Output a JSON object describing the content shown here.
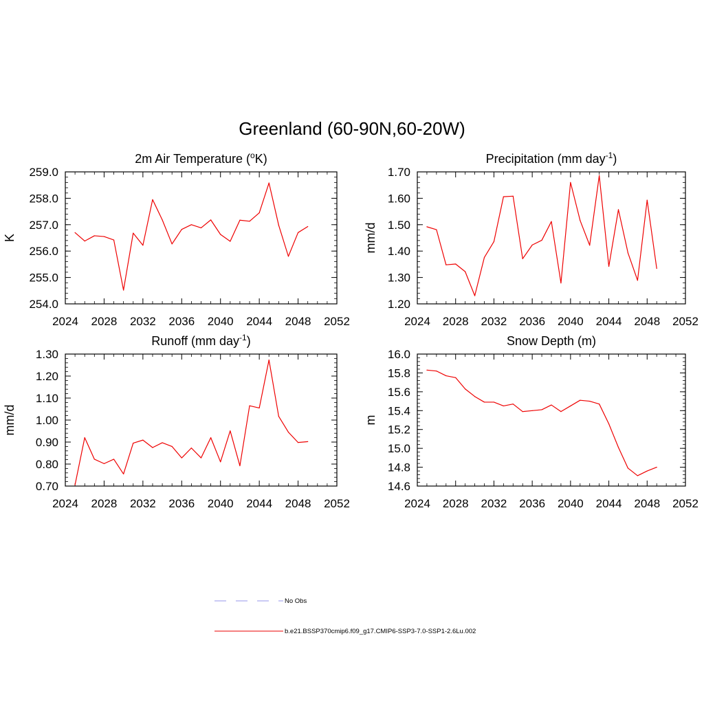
{
  "figure": {
    "title": "Greenland (60-90N,60-20W)"
  },
  "legend": {
    "entries": [
      {
        "label": "No Obs",
        "color": "#aaaaee",
        "dash": true
      },
      {
        "label": "b.e21.BSSP370cmip6.f09_g17.CMIP6-SSP3-7.0-SSP1-2.6Lu.002",
        "color": "#ee3333",
        "dash": false
      }
    ]
  },
  "chart_data": [
    {
      "type": "line",
      "title": "2m Air Temperature (",
      "title_sup": "o",
      "title_tail": "K)",
      "ylabel": "K",
      "xlim": [
        2024,
        2052
      ],
      "ylim": [
        254.0,
        259.0
      ],
      "xticks": [
        2024,
        2028,
        2032,
        2036,
        2040,
        2044,
        2048,
        2052
      ],
      "yticks": [
        "254.0",
        "255.0",
        "256.0",
        "257.0",
        "258.0",
        "259.0"
      ],
      "series": [
        {
          "color": "#ee0000",
          "x": [
            2025,
            2026,
            2027,
            2028,
            2029,
            2030,
            2031,
            2032,
            2033,
            2034,
            2035,
            2036,
            2037,
            2038,
            2039,
            2040,
            2041,
            2042,
            2043,
            2044,
            2045,
            2046,
            2047,
            2048,
            2049
          ],
          "y": [
            256.7,
            256.38,
            256.58,
            256.55,
            256.42,
            254.52,
            256.68,
            256.22,
            257.95,
            257.18,
            256.27,
            256.82,
            257.0,
            256.88,
            257.18,
            256.63,
            256.37,
            257.17,
            257.13,
            257.45,
            258.58,
            256.98,
            255.8,
            256.7,
            256.93
          ]
        }
      ]
    },
    {
      "type": "line",
      "title": "Precipitation (mm day",
      "title_sup": "-1",
      "title_tail": ")",
      "ylabel": "mm/d",
      "xlim": [
        2024,
        2052
      ],
      "ylim": [
        1.2,
        1.7
      ],
      "xticks": [
        2024,
        2028,
        2032,
        2036,
        2040,
        2044,
        2048,
        2052
      ],
      "yticks": [
        "1.20",
        "1.30",
        "1.40",
        "1.50",
        "1.60",
        "1.70"
      ],
      "series": [
        {
          "color": "#ee0000",
          "x": [
            2025,
            2026,
            2027,
            2028,
            2029,
            2030,
            2031,
            2032,
            2033,
            2034,
            2035,
            2036,
            2037,
            2038,
            2039,
            2040,
            2041,
            2042,
            2043,
            2044,
            2045,
            2046,
            2047,
            2048,
            2049
          ],
          "y": [
            1.492,
            1.481,
            1.348,
            1.351,
            1.322,
            1.231,
            1.376,
            1.436,
            1.606,
            1.608,
            1.371,
            1.423,
            1.441,
            1.512,
            1.279,
            1.66,
            1.516,
            1.422,
            1.686,
            1.342,
            1.557,
            1.393,
            1.289,
            1.593,
            1.334
          ]
        }
      ]
    },
    {
      "type": "line",
      "title": "Runoff (mm day",
      "title_sup": "-1",
      "title_tail": ")",
      "ylabel": "mm/d",
      "xlim": [
        2024,
        2052
      ],
      "ylim": [
        0.7,
        1.3
      ],
      "xticks": [
        2024,
        2028,
        2032,
        2036,
        2040,
        2044,
        2048,
        2052
      ],
      "yticks": [
        "0.70",
        "0.80",
        "0.90",
        "1.00",
        "1.10",
        "1.20",
        "1.30"
      ],
      "series": [
        {
          "color": "#ee0000",
          "x": [
            2025,
            2026,
            2027,
            2028,
            2029,
            2030,
            2031,
            2032,
            2033,
            2034,
            2035,
            2036,
            2037,
            2038,
            2039,
            2040,
            2041,
            2042,
            2043,
            2044,
            2045,
            2046,
            2047,
            2048,
            2049
          ],
          "y": [
            0.705,
            0.92,
            0.822,
            0.802,
            0.822,
            0.755,
            0.895,
            0.909,
            0.875,
            0.897,
            0.88,
            0.828,
            0.873,
            0.828,
            0.92,
            0.81,
            0.951,
            0.792,
            1.065,
            1.055,
            1.273,
            1.017,
            0.945,
            0.898,
            0.902
          ]
        }
      ]
    },
    {
      "type": "line",
      "title": "Snow Depth (m)",
      "title_sup": "",
      "title_tail": "",
      "ylabel": "m",
      "xlim": [
        2024,
        2052
      ],
      "ylim": [
        14.6,
        16.0
      ],
      "xticks": [
        2024,
        2028,
        2032,
        2036,
        2040,
        2044,
        2048,
        2052
      ],
      "yticks": [
        "14.6",
        "14.8",
        "15.0",
        "15.2",
        "15.4",
        "15.6",
        "15.8",
        "16.0"
      ],
      "series": [
        {
          "color": "#ee0000",
          "x": [
            2025,
            2026,
            2027,
            2028,
            2029,
            2030,
            2031,
            2032,
            2033,
            2034,
            2035,
            2036,
            2037,
            2038,
            2039,
            2040,
            2041,
            2042,
            2043,
            2044,
            2045,
            2046,
            2047,
            2048,
            2049
          ],
          "y": [
            15.83,
            15.82,
            15.77,
            15.75,
            15.63,
            15.55,
            15.49,
            15.49,
            15.45,
            15.47,
            15.39,
            15.4,
            15.41,
            15.46,
            15.39,
            15.45,
            15.51,
            15.5,
            15.47,
            15.26,
            15.01,
            14.79,
            14.71,
            14.76,
            14.8
          ]
        }
      ]
    }
  ]
}
